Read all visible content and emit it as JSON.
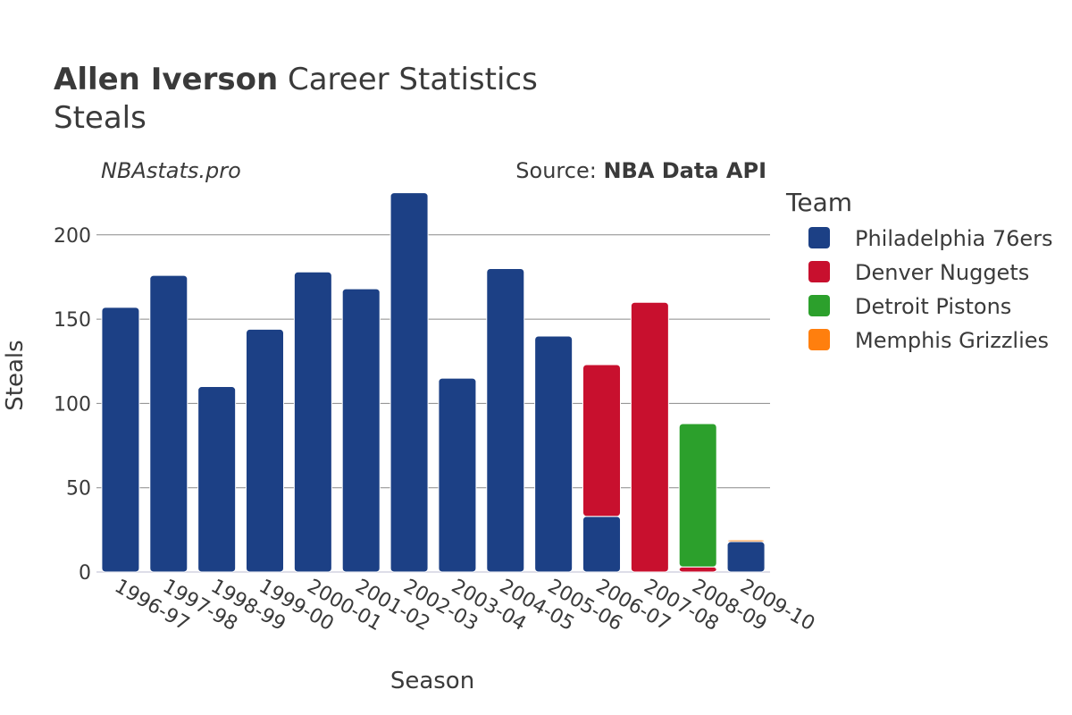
{
  "header": {
    "title_bold": "Allen Iverson",
    "title_rest": " Career Statistics",
    "subtitle": "Steals",
    "watermark": "NBAstats.pro",
    "source_prefix": "Source: ",
    "source_bold": "NBA Data API"
  },
  "legend": {
    "title": "Team",
    "placement": "right"
  },
  "chart_data": {
    "type": "bar",
    "stacked": true,
    "title": "Allen Iverson Career Statistics",
    "subtitle": "Steals",
    "xlabel": "Season",
    "ylabel": "Steals",
    "ylim": [
      0,
      228
    ],
    "yticks": [
      0,
      50,
      100,
      150,
      200
    ],
    "grid": true,
    "categories": [
      "1996-97",
      "1997-98",
      "1998-99",
      "1999-00",
      "2000-01",
      "2001-02",
      "2002-03",
      "2003-04",
      "2004-05",
      "2005-06",
      "2006-07",
      "2007-08",
      "2008-09",
      "2009-10"
    ],
    "series": [
      {
        "name": "Philadelphia 76ers",
        "color": "#1c4085",
        "values": [
          157,
          176,
          110,
          144,
          178,
          168,
          225,
          115,
          180,
          140,
          33,
          0,
          0,
          18
        ]
      },
      {
        "name": "Denver Nuggets",
        "color": "#c8102e",
        "values": [
          0,
          0,
          0,
          0,
          0,
          0,
          0,
          0,
          0,
          0,
          90,
          160,
          3,
          0
        ]
      },
      {
        "name": "Detroit Pistons",
        "color": "#2ca02c",
        "values": [
          0,
          0,
          0,
          0,
          0,
          0,
          0,
          0,
          0,
          0,
          0,
          0,
          85,
          0
        ]
      },
      {
        "name": "Memphis Grizzlies",
        "color": "#ff7f0e",
        "values": [
          0,
          0,
          0,
          0,
          0,
          0,
          0,
          0,
          0,
          0,
          0,
          0,
          0,
          1
        ]
      }
    ]
  }
}
